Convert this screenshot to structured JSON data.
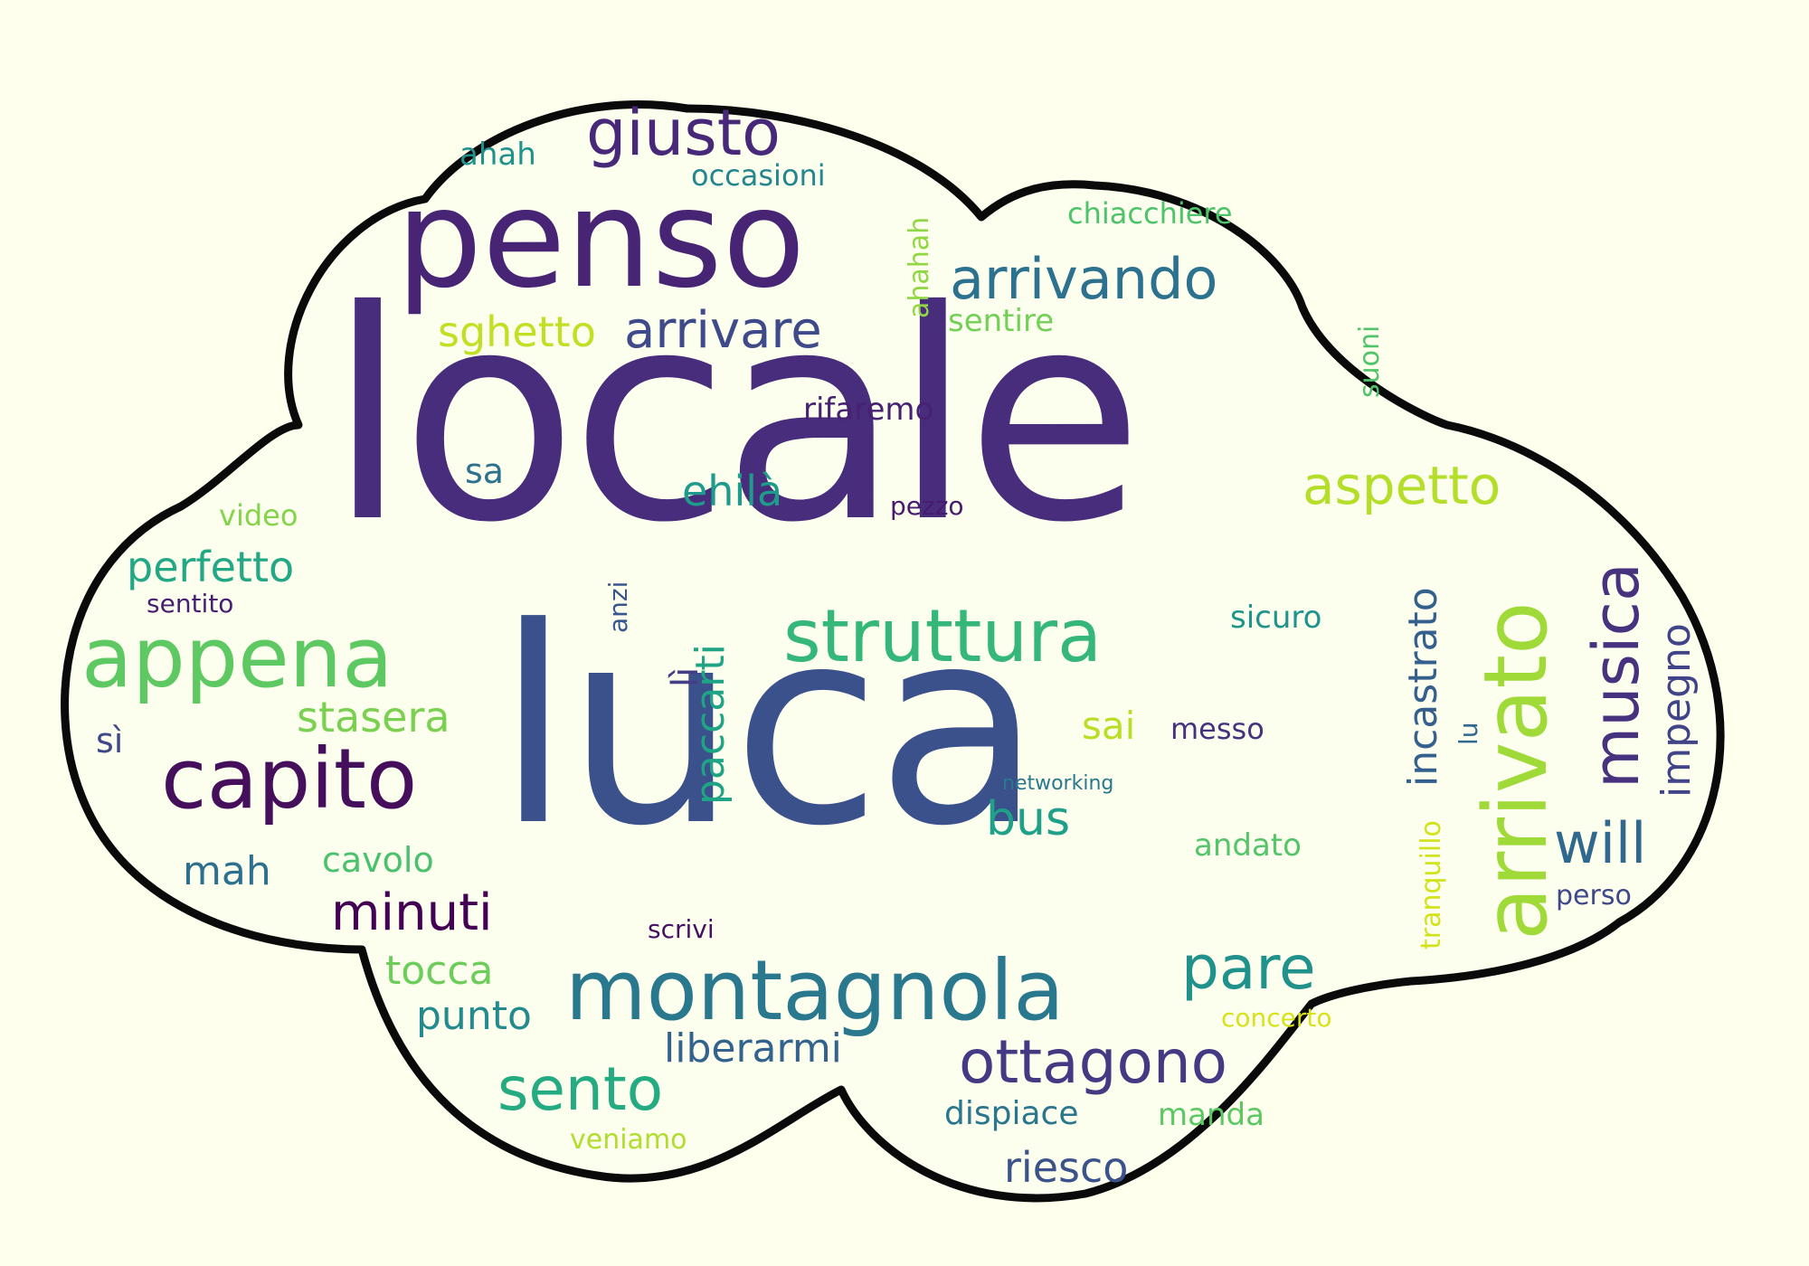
{
  "palette": {
    "background": "#ffffee",
    "cloud_fill": "#fcfeee",
    "cloud_stroke": "#0a0a0a"
  },
  "words": [
    {
      "key": "locale",
      "text": "locale",
      "color": "#472d7b"
    },
    {
      "key": "luca",
      "text": "luca",
      "color": "#3b518b"
    },
    {
      "key": "penso",
      "text": "penso",
      "color": "#482475"
    },
    {
      "key": "arrivato",
      "text": "arrivato",
      "color": "#a0da39"
    },
    {
      "key": "montagnola",
      "text": "montagnola",
      "color": "#2a788e"
    },
    {
      "key": "capito",
      "text": "capito",
      "color": "#450f5c"
    },
    {
      "key": "appena",
      "text": "appena",
      "color": "#5ec962"
    },
    {
      "key": "struttura",
      "text": "struttura",
      "color": "#35b779"
    },
    {
      "key": "giusto",
      "text": "giusto",
      "color": "#482878"
    },
    {
      "key": "arrivando",
      "text": "arrivando",
      "color": "#2c728e"
    },
    {
      "key": "musica",
      "text": "musica",
      "color": "#46327e"
    },
    {
      "key": "ottagono",
      "text": "ottagono",
      "color": "#443983"
    },
    {
      "key": "sento",
      "text": "sento",
      "color": "#25ab82"
    },
    {
      "key": "pare",
      "text": "pare",
      "color": "#21918c"
    },
    {
      "key": "aspetto",
      "text": "aspetto",
      "color": "#b5de2b"
    },
    {
      "key": "arrivare",
      "text": "arrivare",
      "color": "#3e4a89"
    },
    {
      "key": "minuti",
      "text": "minuti",
      "color": "#440154"
    },
    {
      "key": "will",
      "text": "will",
      "color": "#31688e"
    },
    {
      "key": "incastrato",
      "text": "incastrato",
      "color": "#355f8d"
    },
    {
      "key": "perfetto",
      "text": "perfetto",
      "color": "#22a884"
    },
    {
      "key": "stasera",
      "text": "stasera",
      "color": "#7ad151"
    },
    {
      "key": "paccarti",
      "text": "paccarti",
      "color": "#20a486"
    },
    {
      "key": "impegno",
      "text": "impegno",
      "color": "#414487"
    },
    {
      "key": "sghetto",
      "text": "sghetto",
      "color": "#c2df23"
    },
    {
      "key": "bus",
      "text": "bus",
      "color": "#1fa088"
    },
    {
      "key": "ehila",
      "text": "ehilà",
      "color": "#1e9b8a"
    },
    {
      "key": "riesco",
      "text": "riesco",
      "color": "#3b528b"
    },
    {
      "key": "tocca",
      "text": "tocca",
      "color": "#6ccd5a"
    },
    {
      "key": "punto",
      "text": "punto",
      "color": "#238a8d"
    },
    {
      "key": "liberarmi",
      "text": "liberarmi",
      "color": "#33638d"
    },
    {
      "key": "cavolo",
      "text": "cavolo",
      "color": "#4ac16d"
    },
    {
      "key": "mah",
      "text": "mah",
      "color": "#2d708e"
    },
    {
      "key": "sai",
      "text": "sai",
      "color": "#bade28"
    },
    {
      "key": "sa",
      "text": "sa",
      "color": "#2d718e"
    },
    {
      "key": "li",
      "text": "lì",
      "color": "#433e85"
    },
    {
      "key": "si",
      "text": "sì",
      "color": "#3f4788"
    },
    {
      "key": "messo",
      "text": "messo",
      "color": "#46337f"
    },
    {
      "key": "dispiace",
      "text": "dispiace",
      "color": "#2a768e"
    },
    {
      "key": "manda",
      "text": "manda",
      "color": "#5cc863"
    },
    {
      "key": "andato",
      "text": "andato",
      "color": "#54c568"
    },
    {
      "key": "sentire",
      "text": "sentire",
      "color": "#73d056"
    },
    {
      "key": "sicuro",
      "text": "sicuro",
      "color": "#1f948c"
    },
    {
      "key": "occasioni",
      "text": "occasioni",
      "color": "#24878e"
    },
    {
      "key": "chiacchiere",
      "text": "chiacchiere",
      "color": "#4ec36b"
    },
    {
      "key": "ahahah",
      "text": "ahahah",
      "color": "#90d743"
    },
    {
      "key": "ahah",
      "text": "ahah",
      "color": "#20928c"
    },
    {
      "key": "rifaremo",
      "text": "rifaremo",
      "color": "#482173"
    },
    {
      "key": "suoni",
      "text": "suoni",
      "color": "#50c46a"
    },
    {
      "key": "pezzo",
      "text": "pezzo",
      "color": "#481b6d"
    },
    {
      "key": "video",
      "text": "video",
      "color": "#84d44b"
    },
    {
      "key": "sentito",
      "text": "sentito",
      "color": "#481f70"
    },
    {
      "key": "anzi",
      "text": "anzi",
      "color": "#39568c"
    },
    {
      "key": "lu",
      "text": "lu",
      "color": "#30698e"
    },
    {
      "key": "networking",
      "text": "networking",
      "color": "#29788e"
    },
    {
      "key": "tranquillo",
      "text": "tranquillo",
      "color": "#d2e21b"
    },
    {
      "key": "perso",
      "text": "perso",
      "color": "#3f4889"
    },
    {
      "key": "scrivi",
      "text": "scrivi",
      "color": "#471063"
    },
    {
      "key": "concerto",
      "text": "concerto",
      "color": "#d8e219"
    },
    {
      "key": "veniamo",
      "text": "veniamo",
      "color": "#b0dd2f"
    }
  ]
}
